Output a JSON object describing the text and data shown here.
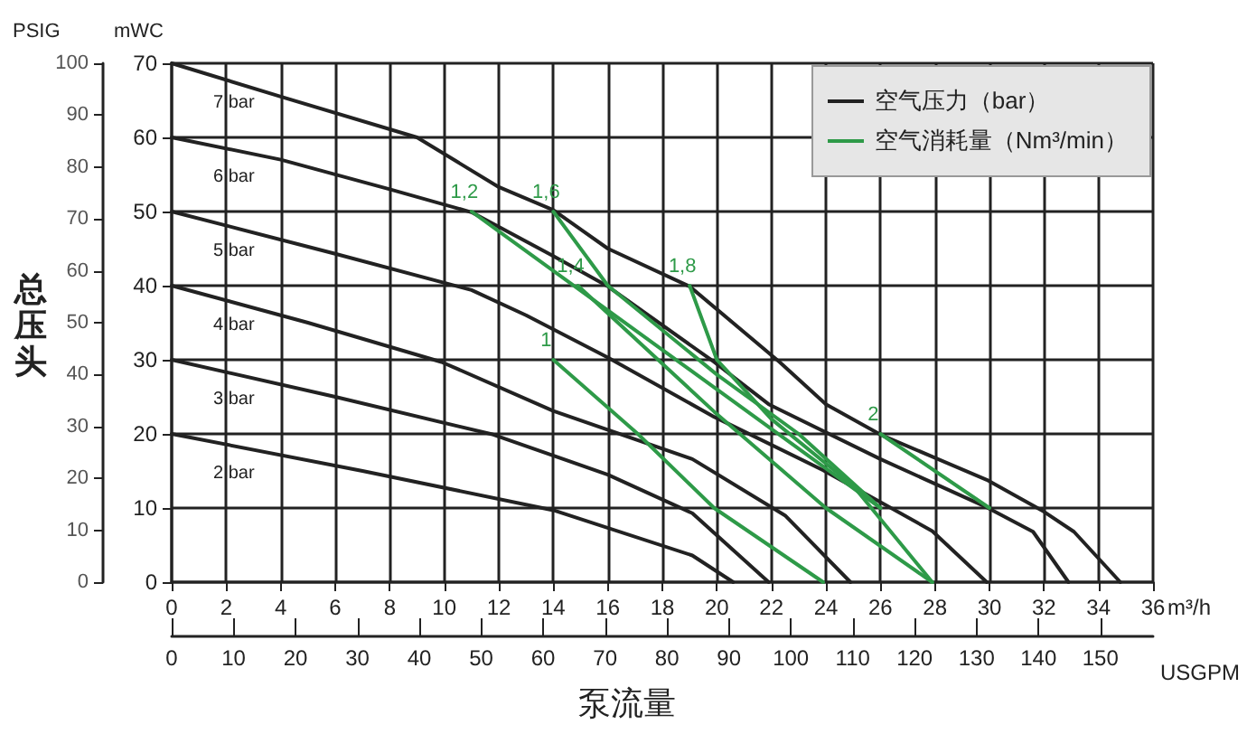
{
  "chart_data": {
    "type": "line",
    "xlabel": "m³/h",
    "x2label": "USGPM",
    "ylabel": "mWC",
    "y2label": "PSIG",
    "annotations": [
      "泵流量",
      "总压头",
      "空气压力（bar）",
      "空气消耗量（Nm³/min）"
    ],
    "xlim": [
      0,
      36
    ],
    "xticks": [
      0,
      2,
      4,
      6,
      8,
      10,
      12,
      14,
      16,
      18,
      20,
      22,
      24,
      26,
      28,
      30,
      32,
      34,
      36
    ],
    "x2lim": [
      0,
      158.5
    ],
    "x2ticks": [
      0,
      10,
      20,
      30,
      40,
      50,
      60,
      70,
      80,
      90,
      100,
      110,
      120,
      130,
      140,
      150
    ],
    "ylim": [
      0,
      70
    ],
    "yticks": [
      0,
      10,
      20,
      30,
      40,
      50,
      60,
      70
    ],
    "y2lim": [
      0,
      100
    ],
    "y2ticks": [
      0,
      10,
      20,
      30,
      40,
      50,
      60,
      70,
      80,
      90,
      100
    ],
    "grid": true,
    "marker": "none",
    "line_style": "solid",
    "series": [
      {
        "name": "7 bar",
        "color": "#222222",
        "x": [
          0,
          4,
          9,
          12,
          14,
          16,
          19,
          22.3,
          24,
          26,
          29.9,
          32,
          33.1,
          34.8
        ],
        "values": [
          70,
          65.5,
          60,
          53.3,
          50.2,
          45,
          39.9,
          29.7,
          24,
          19.9,
          13.8,
          9.5,
          6.8,
          0
        ]
      },
      {
        "name": "6 bar",
        "color": "#222222",
        "x": [
          0,
          4,
          8,
          11,
          14,
          16,
          19.9,
          21.9,
          26,
          29.9,
          31.6,
          32.9
        ],
        "values": [
          60,
          57,
          53,
          49.9,
          44,
          39.9,
          29.7,
          24,
          16.6,
          10.1,
          6.8,
          0
        ]
      },
      {
        "name": "5 bar",
        "color": "#222222",
        "x": [
          0,
          6,
          11,
          13,
          16,
          19.9,
          23.9,
          27.9,
          29.9
        ],
        "values": [
          50,
          44.3,
          39.4,
          36,
          30.3,
          22.3,
          15.1,
          6.9,
          0
        ]
      },
      {
        "name": "4 bar",
        "color": "#222222",
        "x": [
          0,
          5,
          9.9,
          14,
          19.1,
          22.5,
          24.9
        ],
        "values": [
          40,
          35,
          29.7,
          23.1,
          16.6,
          9,
          0
        ]
      },
      {
        "name": "3 bar",
        "color": "#222222",
        "x": [
          0,
          6,
          11.8,
          16,
          19.1,
          21.9
        ],
        "values": [
          30,
          25,
          19.9,
          14.5,
          9.3,
          0
        ]
      },
      {
        "name": "2 bar",
        "color": "#222222",
        "x": [
          0,
          7,
          14,
          19.1,
          20.6
        ],
        "values": [
          20,
          15,
          9.7,
          3.6,
          0
        ]
      },
      {
        "name": "1",
        "color": "#2e9a48",
        "x": [
          14,
          17.1,
          19.9,
          23.9
        ],
        "values": [
          30,
          20,
          10,
          0
        ]
      },
      {
        "name": "1,2",
        "color": "#2e9a48",
        "x": [
          11,
          26
        ],
        "values": [
          50,
          10
        ]
      },
      {
        "name": "1,4",
        "color": "#2e9a48",
        "x": [
          14.9,
          19.9,
          24,
          27.9
        ],
        "values": [
          40,
          23,
          10,
          0
        ]
      },
      {
        "name": "1,6",
        "color": "#2e9a48",
        "x": [
          14,
          16,
          20,
          23,
          26
        ],
        "values": [
          50,
          40,
          28,
          20,
          10
        ]
      },
      {
        "name": "1,8",
        "color": "#2e9a48",
        "x": [
          19,
          20,
          22,
          25,
          27.9
        ],
        "values": [
          40,
          30,
          22,
          13,
          0
        ]
      },
      {
        "name": "2",
        "color": "#2e9a48",
        "x": [
          26,
          30
        ],
        "values": [
          20,
          10
        ]
      }
    ]
  }
}
